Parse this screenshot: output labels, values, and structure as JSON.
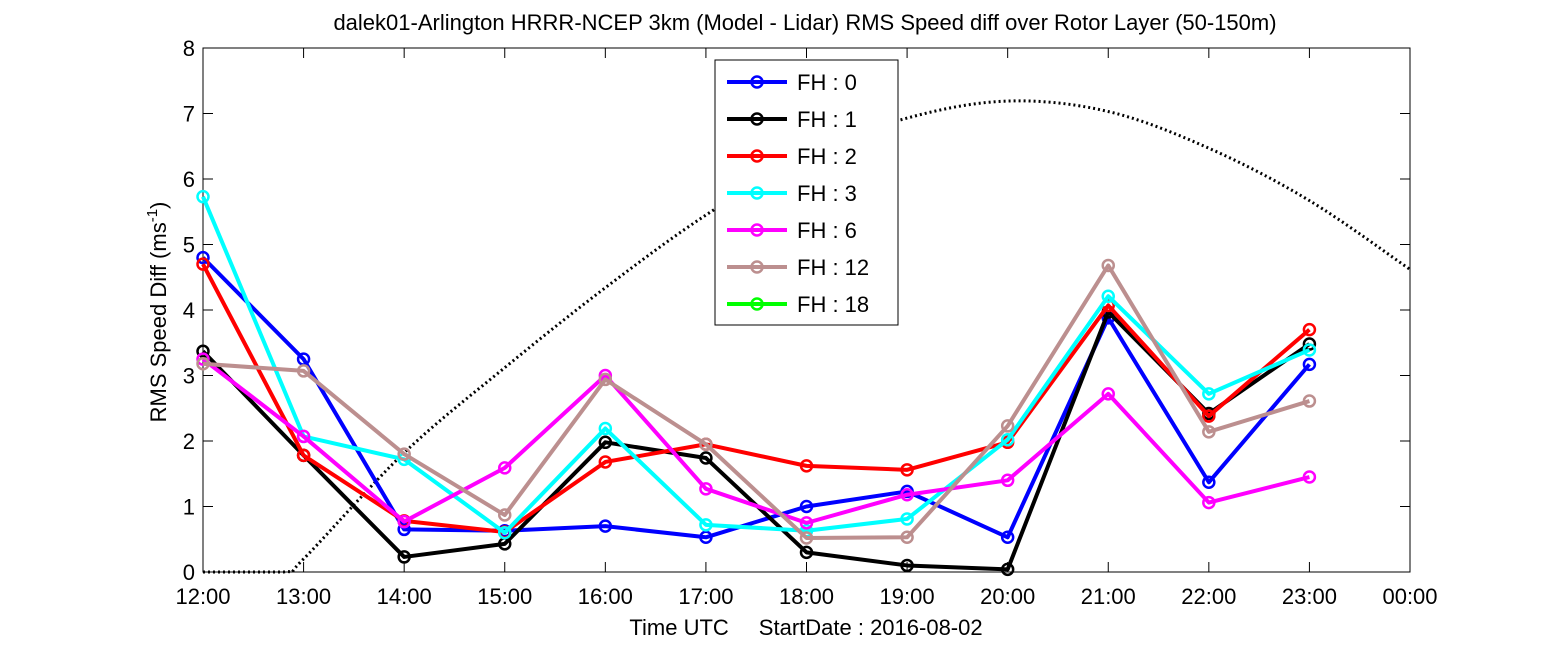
{
  "chart_data": {
    "type": "line",
    "title": "dalek01-Arlington HRRR-NCEP 3km (Model - Lidar) RMS Speed diff over Rotor Layer (50-150m)",
    "xlabel": "Time UTC",
    "xlabel_extra": "StartDate : 2016-08-02",
    "ylabel_main": "RMS Speed Diff (ms",
    "ylabel_sup": "-1",
    "ylabel_close": ")",
    "ylim": [
      0,
      8
    ],
    "yticks": [
      "0",
      "1",
      "2",
      "3",
      "4",
      "5",
      "6",
      "7",
      "8"
    ],
    "xticks": [
      "12:00",
      "13:00",
      "14:00",
      "15:00",
      "16:00",
      "17:00",
      "18:00",
      "19:00",
      "20:00",
      "21:00",
      "22:00",
      "23:00",
      "00:00"
    ],
    "grid": false,
    "legend_position": "top-center",
    "series": [
      {
        "name": "FH : 0",
        "color": "#0000ff",
        "x": [
          "12:00",
          "13:00",
          "14:00",
          "15:00",
          "16:00",
          "17:00",
          "18:00",
          "19:00",
          "20:00",
          "21:00",
          "22:00",
          "23:00"
        ],
        "values": [
          4.8,
          3.25,
          0.65,
          0.63,
          0.7,
          0.53,
          1.0,
          1.23,
          0.53,
          3.88,
          1.37,
          3.17
        ]
      },
      {
        "name": "FH : 1",
        "color": "#000000",
        "x": [
          "12:00",
          "13:00",
          "14:00",
          "15:00",
          "16:00",
          "17:00",
          "18:00",
          "19:00",
          "20:00",
          "21:00",
          "22:00",
          "23:00"
        ],
        "values": [
          3.37,
          1.78,
          0.23,
          0.43,
          1.98,
          1.74,
          0.3,
          0.1,
          0.04,
          3.97,
          2.42,
          3.48
        ]
      },
      {
        "name": "FH : 2",
        "color": "#ff0000",
        "x": [
          "12:00",
          "13:00",
          "14:00",
          "15:00",
          "16:00",
          "17:00",
          "18:00",
          "19:00",
          "20:00",
          "21:00",
          "22:00",
          "23:00"
        ],
        "values": [
          4.7,
          1.78,
          0.78,
          0.61,
          1.68,
          1.95,
          1.62,
          1.56,
          1.98,
          4.07,
          2.38,
          3.7
        ]
      },
      {
        "name": "FH : 3",
        "color": "#00ffff",
        "x": [
          "12:00",
          "13:00",
          "14:00",
          "15:00",
          "16:00",
          "17:00",
          "18:00",
          "19:00",
          "20:00",
          "21:00",
          "22:00",
          "23:00"
        ],
        "values": [
          5.73,
          2.07,
          1.72,
          0.6,
          2.19,
          0.72,
          0.63,
          0.81,
          2.02,
          4.21,
          2.72,
          3.39
        ]
      },
      {
        "name": "FH : 6",
        "color": "#ff00ff",
        "x": [
          "12:00",
          "13:00",
          "14:00",
          "15:00",
          "16:00",
          "17:00",
          "18:00",
          "19:00",
          "20:00",
          "21:00",
          "22:00",
          "23:00"
        ],
        "values": [
          3.25,
          2.07,
          0.77,
          1.59,
          3.0,
          1.27,
          0.75,
          1.18,
          1.4,
          2.72,
          1.06,
          1.45
        ]
      },
      {
        "name": "FH : 12",
        "color": "#bc8f8f",
        "x": [
          "12:00",
          "13:00",
          "14:00",
          "15:00",
          "16:00",
          "17:00",
          "18:00",
          "19:00",
          "20:00",
          "21:00",
          "22:00",
          "23:00"
        ],
        "values": [
          3.18,
          3.07,
          1.8,
          0.87,
          2.94,
          1.95,
          0.52,
          0.53,
          2.23,
          4.68,
          2.14,
          2.61
        ]
      },
      {
        "name": "FH : 18",
        "color": "#00ff00",
        "x": [],
        "values": []
      }
    ],
    "reference_curve": {
      "style": "dotted",
      "color": "#000000",
      "x": [
        "12:00",
        "12:48",
        "13:00",
        "14:00",
        "15:00",
        "16:00",
        "17:00",
        "18:00",
        "19:00",
        "20:00",
        "21:00",
        "22:00",
        "23:00",
        "00:00"
      ],
      "values": [
        0,
        0,
        0.2,
        1.82,
        3.12,
        4.34,
        5.45,
        6.36,
        6.93,
        7.19,
        7.03,
        6.47,
        5.67,
        4.62
      ]
    }
  }
}
